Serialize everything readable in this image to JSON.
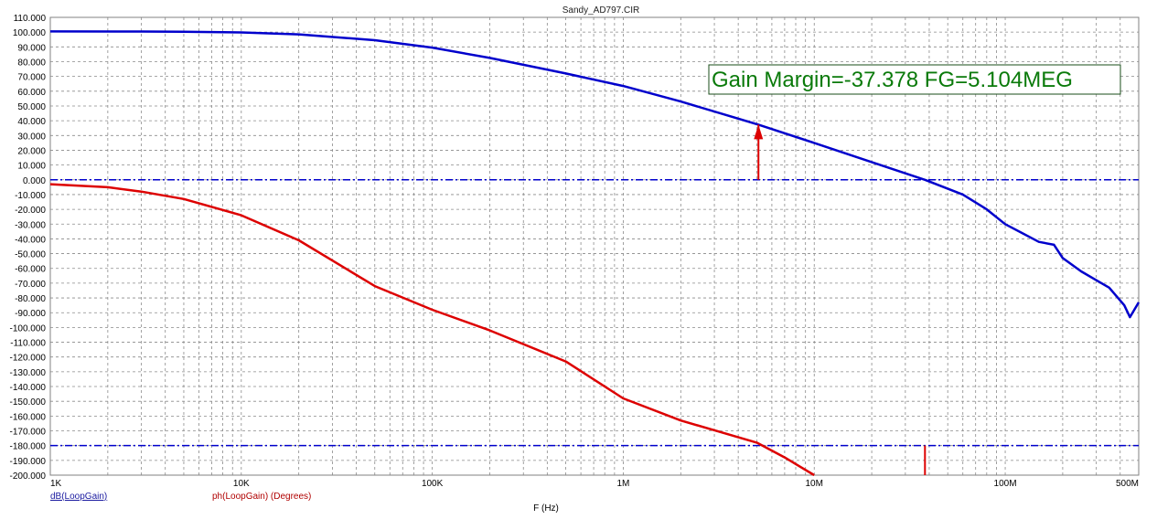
{
  "chart_data": {
    "type": "line",
    "title": "Sandy_AD797.CIR",
    "xlabel": "F (Hz)",
    "x_scale": "log",
    "xlim": [
      1000,
      500000000
    ],
    "ylim": [
      -200,
      110
    ],
    "grid": true,
    "x_tick_labels": [
      {
        "value": 1000,
        "label": "1K"
      },
      {
        "value": 10000,
        "label": "10K"
      },
      {
        "value": 100000,
        "label": "100K"
      },
      {
        "value": 1000000,
        "label": "1M"
      },
      {
        "value": 10000000,
        "label": "10M"
      },
      {
        "value": 100000000,
        "label": "100M"
      },
      {
        "value": 500000000,
        "label": "500M"
      }
    ],
    "y_tick_labels": [
      "110.000",
      "100.000",
      "90.000",
      "80.000",
      "70.000",
      "60.000",
      "50.000",
      "40.000",
      "30.000",
      "20.000",
      "10.000",
      "0.000",
      "-10.000",
      "-20.000",
      "-30.000",
      "-40.000",
      "-50.000",
      "-60.000",
      "-70.000",
      "-80.000",
      "-90.000",
      "-100.000",
      "-110.000",
      "-120.000",
      "-130.000",
      "-140.000",
      "-150.000",
      "-160.000",
      "-170.000",
      "-180.000",
      "-190.000",
      "-200.000"
    ],
    "series": [
      {
        "name": "dB(LoopGain)",
        "color": "#0000cc",
        "x": [
          1000,
          3000,
          5000,
          10000,
          20000,
          50000,
          100000,
          200000,
          500000,
          1000000,
          2000000,
          5104000,
          10000000,
          20000000,
          38000000,
          60000000,
          80000000,
          100000000,
          150000000,
          180000000,
          200000000,
          250000000,
          300000000,
          350000000,
          420000000,
          450000000,
          500000000
        ],
        "y": [
          100.5,
          100.4,
          100.2,
          99.8,
          98.5,
          94.5,
          89.5,
          82.5,
          72,
          63.5,
          53,
          37.378,
          25,
          12,
          0,
          -10,
          -20,
          -30,
          -42,
          -44,
          -53,
          -62,
          -68,
          -73,
          -85,
          -93,
          -83
        ]
      },
      {
        "name": "ph(LoopGain) (Degrees)",
        "color": "#dd0000",
        "x": [
          1000,
          2000,
          3000,
          5000,
          10000,
          20000,
          50000,
          100000,
          200000,
          500000,
          1000000,
          2000000,
          5000000,
          7000000,
          10000000
        ],
        "y": [
          -3,
          -5,
          -8,
          -13,
          -24,
          -41,
          -72,
          -88,
          -102,
          -123,
          -148,
          -163,
          -178,
          -188,
          -200
        ]
      }
    ],
    "reference_lines": [
      {
        "axis": "y",
        "value": 0,
        "color": "#0000cc",
        "style": "dash-dot"
      },
      {
        "axis": "y",
        "value": -180,
        "color": "#0000cc",
        "style": "dash-dot"
      }
    ],
    "markers": [
      {
        "x": 5104000,
        "y_from": 0,
        "y_to": 37.378,
        "color": "#dd0000",
        "type": "arrow"
      },
      {
        "x": 38000000,
        "y_from": -180,
        "y_to": -200,
        "color": "#dd0000",
        "type": "line"
      }
    ],
    "annotation": {
      "text": "Gain Margin=-37.378 FG=5.104MEG",
      "color": "#0a7a0a"
    },
    "legend": [
      {
        "text": "dB(LoopGain)",
        "color": "#1a1aa0"
      },
      {
        "text": "ph(LoopGain) (Degrees)",
        "color": "#b00000"
      }
    ]
  }
}
